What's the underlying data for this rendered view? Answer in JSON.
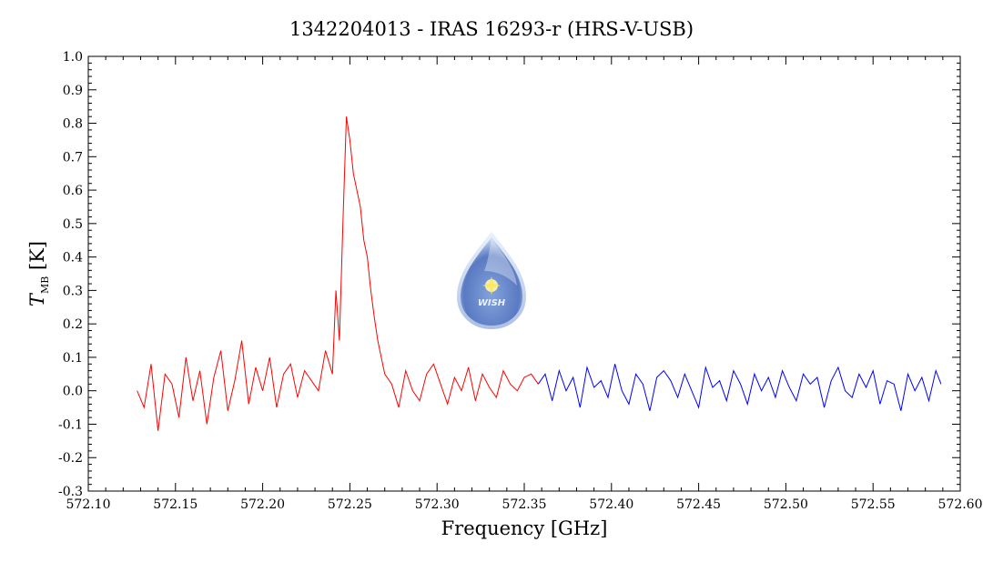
{
  "chart_data": {
    "type": "line",
    "title": "1342204013 - IRAS 16293-r (HRS-V-USB)",
    "xlabel": "Frequency [GHz]",
    "ylabel_main": "T",
    "ylabel_sub": "MB",
    "ylabel_unit": "[K]",
    "xlim": [
      572.1,
      572.6
    ],
    "ylim": [
      -0.3,
      1.0
    ],
    "x_ticks": [
      "572.10",
      "572.15",
      "572.20",
      "572.25",
      "572.30",
      "572.35",
      "572.40",
      "572.45",
      "572.50",
      "572.55",
      "572.60"
    ],
    "y_ticks": [
      "-0.3",
      "-0.2",
      "-0.1",
      "0.0",
      "0.1",
      "0.2",
      "0.3",
      "0.4",
      "0.5",
      "0.6",
      "0.7",
      "0.8",
      "0.9",
      "1.0"
    ],
    "grid": false,
    "series": [
      {
        "color": "#ff0000",
        "x": [
          572.128,
          572.132,
          572.136,
          572.14,
          572.144,
          572.148,
          572.152,
          572.156,
          572.16,
          572.164,
          572.168,
          572.172,
          572.176,
          572.18,
          572.184,
          572.188,
          572.192,
          572.196,
          572.2,
          572.204,
          572.208,
          572.212,
          572.216,
          572.22,
          572.224,
          572.228,
          572.232,
          572.236,
          572.24,
          572.242,
          572.244,
          572.246,
          572.248,
          572.25,
          572.252,
          572.254,
          572.256,
          572.258,
          572.26,
          572.262,
          572.264,
          572.266,
          572.268,
          572.27,
          572.274,
          572.278,
          572.282,
          572.286,
          572.29,
          572.294,
          572.298,
          572.302,
          572.306,
          572.31,
          572.314,
          572.318,
          572.322,
          572.326,
          572.33,
          572.334,
          572.338,
          572.342,
          572.346,
          572.35,
          572.354,
          572.358
        ],
        "y": [
          0.0,
          -0.05,
          0.08,
          -0.12,
          0.05,
          0.02,
          -0.08,
          0.1,
          -0.03,
          0.06,
          -0.1,
          0.04,
          0.12,
          -0.06,
          0.03,
          0.15,
          -0.04,
          0.07,
          0.0,
          0.1,
          -0.05,
          0.05,
          0.08,
          -0.02,
          0.06,
          0.03,
          0.0,
          0.12,
          0.05,
          0.3,
          0.15,
          0.5,
          0.82,
          0.75,
          0.65,
          0.6,
          0.55,
          0.45,
          0.4,
          0.3,
          0.22,
          0.15,
          0.1,
          0.05,
          0.02,
          -0.05,
          0.06,
          0.0,
          -0.03,
          0.05,
          0.08,
          0.02,
          -0.04,
          0.04,
          0.0,
          0.07,
          -0.03,
          0.05,
          0.01,
          -0.02,
          0.06,
          0.02,
          0.0,
          0.04,
          0.05,
          0.02
        ]
      },
      {
        "color": "#0000ff",
        "x": [
          572.358,
          572.362,
          572.366,
          572.37,
          572.374,
          572.378,
          572.382,
          572.386,
          572.39,
          572.394,
          572.398,
          572.402,
          572.406,
          572.41,
          572.414,
          572.418,
          572.422,
          572.426,
          572.43,
          572.434,
          572.438,
          572.442,
          572.446,
          572.45,
          572.454,
          572.458,
          572.462,
          572.466,
          572.47,
          572.474,
          572.478,
          572.482,
          572.486,
          572.49,
          572.494,
          572.498,
          572.502,
          572.506,
          572.51,
          572.514,
          572.518,
          572.522,
          572.526,
          572.53,
          572.534,
          572.538,
          572.542,
          572.546,
          572.55,
          572.554,
          572.558,
          572.562,
          572.566,
          572.57,
          572.574,
          572.578,
          572.582,
          572.586,
          572.589
        ],
        "y": [
          0.02,
          0.05,
          -0.03,
          0.06,
          0.0,
          0.04,
          -0.05,
          0.07,
          0.01,
          0.03,
          -0.02,
          0.08,
          0.0,
          -0.04,
          0.05,
          0.02,
          -0.06,
          0.04,
          0.06,
          0.03,
          -0.02,
          0.05,
          0.0,
          -0.05,
          0.07,
          0.01,
          0.03,
          -0.03,
          0.06,
          0.02,
          -0.04,
          0.05,
          0.0,
          0.04,
          -0.02,
          0.06,
          0.01,
          -0.03,
          0.05,
          0.02,
          0.04,
          -0.05,
          0.03,
          0.07,
          0.0,
          -0.02,
          0.05,
          0.01,
          0.06,
          -0.04,
          0.03,
          0.02,
          -0.06,
          0.05,
          0.0,
          0.04,
          -0.03,
          0.06,
          0.02
        ]
      }
    ],
    "logo_text": "WISH"
  }
}
